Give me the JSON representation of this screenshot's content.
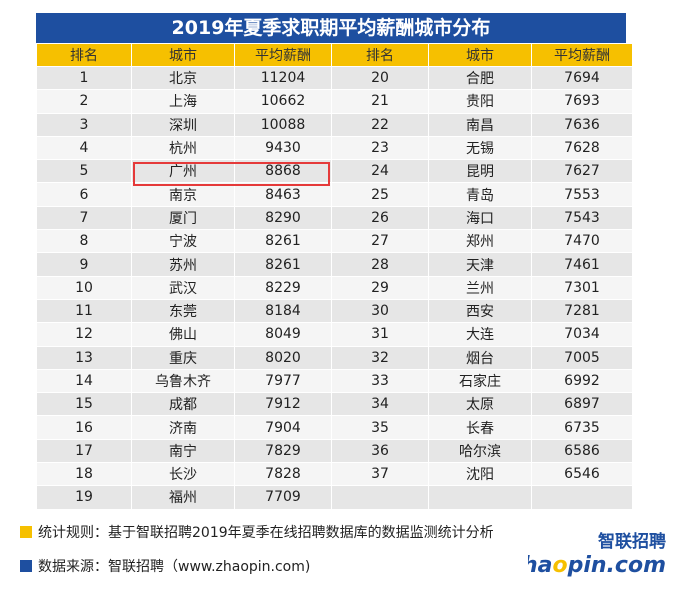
{
  "title": "2019年夏季求职期平均薪酬城市分布",
  "headers": [
    "排名",
    "城市",
    "平均薪酬",
    "排名",
    "城市",
    "平均薪酬"
  ],
  "rows": [
    [
      "1",
      "北京",
      "11204",
      "20",
      "合肥",
      "7694"
    ],
    [
      "2",
      "上海",
      "10662",
      "21",
      "贵阳",
      "7693"
    ],
    [
      "3",
      "深圳",
      "10088",
      "22",
      "南昌",
      "7636"
    ],
    [
      "4",
      "杭州",
      "9430",
      "23",
      "无锡",
      "7628"
    ],
    [
      "5",
      "广州",
      "8868",
      "24",
      "昆明",
      "7627"
    ],
    [
      "6",
      "南京",
      "8463",
      "25",
      "青岛",
      "7553"
    ],
    [
      "7",
      "厦门",
      "8290",
      "26",
      "海口",
      "7543"
    ],
    [
      "8",
      "宁波",
      "8261",
      "27",
      "郑州",
      "7470"
    ],
    [
      "9",
      "苏州",
      "8261",
      "28",
      "天津",
      "7461"
    ],
    [
      "10",
      "武汉",
      "8229",
      "29",
      "兰州",
      "7301"
    ],
    [
      "11",
      "东莞",
      "8184",
      "30",
      "西安",
      "7281"
    ],
    [
      "12",
      "佛山",
      "8049",
      "31",
      "大连",
      "7034"
    ],
    [
      "13",
      "重庆",
      "8020",
      "32",
      "烟台",
      "7005"
    ],
    [
      "14",
      "乌鲁木齐",
      "7977",
      "33",
      "石家庄",
      "6992"
    ],
    [
      "15",
      "成都",
      "7912",
      "34",
      "太原",
      "6897"
    ],
    [
      "16",
      "济南",
      "7904",
      "35",
      "长春",
      "6735"
    ],
    [
      "17",
      "南宁",
      "7829",
      "36",
      "哈尔滨",
      "6586"
    ],
    [
      "18",
      "长沙",
      "7828",
      "37",
      "沈阳",
      "6546"
    ],
    [
      "19",
      "福州",
      "7709",
      "",
      "",
      ""
    ]
  ],
  "notes": {
    "rule": "统计规则：基于智联招聘2019年夏季在线招聘数据库的数据监测统计分析",
    "source": "数据来源：智联招聘（www.zhaopin.com)"
  },
  "logo": {
    "cn": "智联招聘",
    "en_a": "zha",
    "en_b": "pin.com"
  },
  "colors": {
    "title_bg": "#1e4fa0",
    "header_bg": "#f6c000",
    "highlight": "#e53a3a",
    "logo_blue": "#1e4fa0",
    "logo_yellow": "#f6c000"
  }
}
